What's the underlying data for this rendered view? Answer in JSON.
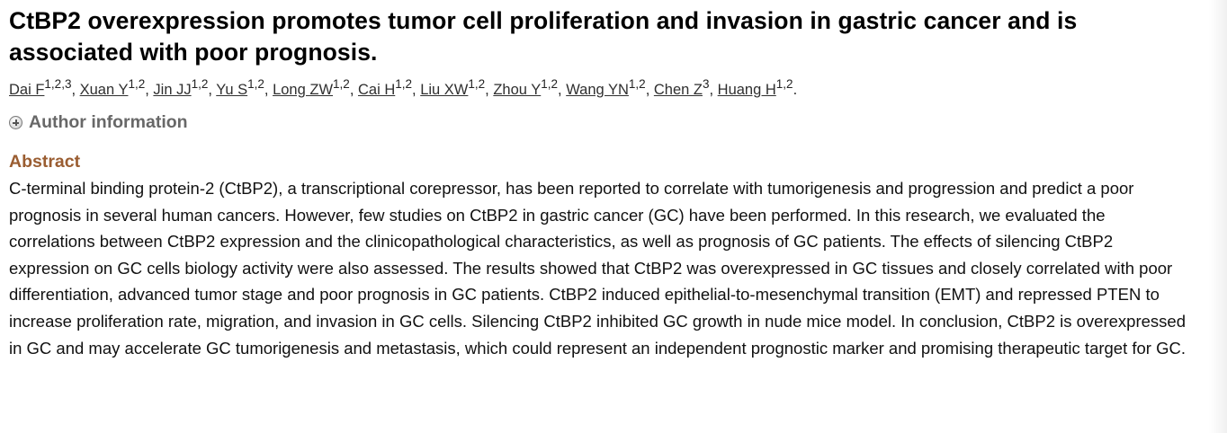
{
  "article": {
    "title": "CtBP2 overexpression promotes tumor cell proliferation and invasion in gastric cancer and is associated with poor prognosis.",
    "authors": [
      {
        "name": "Dai F",
        "affil": "1,2,3"
      },
      {
        "name": "Xuan Y",
        "affil": "1,2"
      },
      {
        "name": "Jin JJ",
        "affil": "1,2"
      },
      {
        "name": "Yu S",
        "affil": "1,2"
      },
      {
        "name": "Long ZW",
        "affil": "1,2"
      },
      {
        "name": "Cai H",
        "affil": "1,2"
      },
      {
        "name": "Liu XW",
        "affil": "1,2"
      },
      {
        "name": "Zhou Y",
        "affil": "1,2"
      },
      {
        "name": "Wang YN",
        "affil": "1,2"
      },
      {
        "name": "Chen Z",
        "affil": "3"
      },
      {
        "name": "Huang H",
        "affil": "1,2"
      }
    ],
    "author_info_label": "Author information",
    "abstract_heading": "Abstract",
    "abstract_text": "C-terminal binding protein-2 (CtBP2), a transcriptional corepressor, has been reported to correlate with tumorigenesis and progression and predict a poor prognosis in several human cancers. However, few studies on CtBP2 in gastric cancer (GC) have been performed. In this research, we evaluated the correlations between CtBP2 expression and the clinicopathological characteristics, as well as prognosis of GC patients. The effects of silencing CtBP2 expression on GC cells biology activity were also assessed. The results showed that CtBP2 was overexpressed in GC tissues and closely correlated with poor differentiation, advanced tumor stage and poor prognosis in GC patients. CtBP2 induced epithelial-to-mesenchymal transition (EMT) and repressed PTEN to increase proliferation rate, migration, and invasion in GC cells. Silencing CtBP2 inhibited GC growth in nude mice model. In conclusion, CtBP2 is overexpressed in GC and may accelerate GC tumorigenesis and metastasis, which could represent an independent prognostic marker and promising therapeutic target for GC."
  },
  "icons": {
    "author_info_toggle": "plus-circle-icon"
  },
  "colors": {
    "abstract_heading": "#9a5d31",
    "author_info_label": "#686868"
  }
}
